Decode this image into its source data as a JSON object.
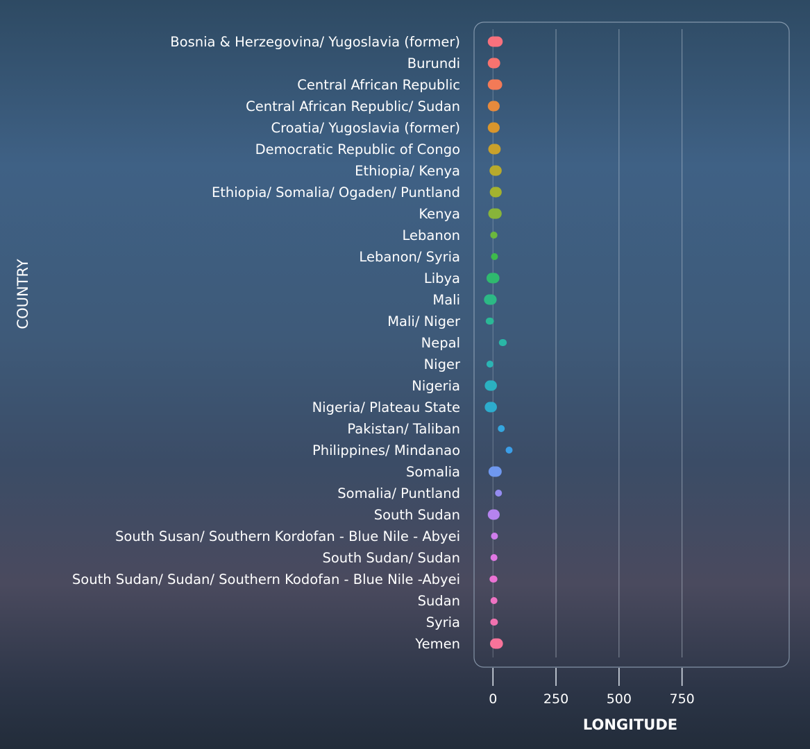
{
  "chart_data": {
    "type": "scatter",
    "orientation": "horizontal-categorical",
    "title": "",
    "xlabel": "LONGITUDE",
    "ylabel": "COUNTRY",
    "xlim": [
      -75,
      1175
    ],
    "xticks": [
      0,
      250,
      500,
      750
    ],
    "xtick_labels": [
      "0",
      "250",
      "500",
      "750"
    ],
    "grid": true,
    "legend": "none",
    "categories": [
      "Bosnia & Herzegovina/ Yugoslavia (former)",
      "Burundi",
      "Central African Republic",
      "Central African Republic/ Sudan",
      "Croatia/ Yugoslavia (former)",
      "Democratic Republic of Congo",
      "Ethiopia/ Kenya",
      "Ethiopia/ Somalia/ Ogaden/ Puntland",
      "Kenya",
      "Lebanon",
      "Lebanon/ Syria",
      "Libya",
      "Mali",
      "Mali/ Niger",
      "Nepal",
      "Niger",
      "Nigeria",
      "Nigeria/ Plateau State",
      "Pakistan/ Taliban",
      "Philippines/ Mindanao",
      "Somalia",
      "Somalia/ Puntland",
      "South Sudan",
      "South Susan/ Southern Kordofan - Blue Nile - Abyei",
      "South Sudan/ Sudan",
      "South Sudan/ Sudan/ Southern Kodofan - Blue Nile -Abyei",
      "Sudan",
      "Syria",
      "Yemen"
    ],
    "points": [
      {
        "category": "Bosnia & Herzegovina/ Yugoslavia (former)",
        "x_min": 0,
        "x_max": 18,
        "color": "#f7717d"
      },
      {
        "category": "Burundi",
        "x_min": 0,
        "x_max": 8,
        "color": "#f7736f"
      },
      {
        "category": "Central African Republic",
        "x_min": 0,
        "x_max": 16,
        "color": "#f37a57"
      },
      {
        "category": "Central African Republic/ Sudan",
        "x_min": 0,
        "x_max": 6,
        "color": "#e68a3c"
      },
      {
        "category": "Croatia/ Yugoslavia (former)",
        "x_min": 0,
        "x_max": 6,
        "color": "#d9962c"
      },
      {
        "category": "Democratic Republic of Congo",
        "x_min": 2,
        "x_max": 10,
        "color": "#c9a12b"
      },
      {
        "category": "Ethiopia/ Kenya",
        "x_min": 7,
        "x_max": 14,
        "color": "#b8aa2c"
      },
      {
        "category": "Ethiopia/ Somalia/ Ogaden/ Puntland",
        "x_min": 8,
        "x_max": 14,
        "color": "#a4b22e"
      },
      {
        "category": "Kenya",
        "x_min": 2,
        "x_max": 14,
        "color": "#88b43a"
      },
      {
        "category": "Lebanon",
        "x_min": 3,
        "x_max": 4,
        "color": "#6bb73e"
      },
      {
        "category": "Lebanon/ Syria",
        "x_min": 6,
        "x_max": 6,
        "color": "#3dba4c"
      },
      {
        "category": "Libya",
        "x_min": -5,
        "x_max": 5,
        "color": "#2fba6e"
      },
      {
        "category": "Mali",
        "x_min": -15,
        "x_max": -6,
        "color": "#2cb985"
      },
      {
        "category": "Mali/ Niger",
        "x_min": -15,
        "x_max": -10,
        "color": "#2bb896"
      },
      {
        "category": "Nepal",
        "x_min": 37,
        "x_max": 41,
        "color": "#2ab6a6"
      },
      {
        "category": "Niger",
        "x_min": -12,
        "x_max": -12,
        "color": "#2bb4b4"
      },
      {
        "category": "Nigeria",
        "x_min": -12,
        "x_max": -5,
        "color": "#2bb1c1"
      },
      {
        "category": "Nigeria/ Plateau State",
        "x_min": -12,
        "x_max": -5,
        "color": "#2daccd"
      },
      {
        "category": "Pakistan/ Taliban",
        "x_min": 33,
        "x_max": 33,
        "color": "#35a6de"
      },
      {
        "category": "Philippines/ Mindanao",
        "x_min": 64,
        "x_max": 64,
        "color": "#3b9ee8"
      },
      {
        "category": "Somalia",
        "x_min": 3,
        "x_max": 14,
        "color": "#6f98ef"
      },
      {
        "category": "Somalia/ Puntland",
        "x_min": 22,
        "x_max": 22,
        "color": "#948cf0"
      },
      {
        "category": "South Sudan",
        "x_min": 0,
        "x_max": 6,
        "color": "#b583ef"
      },
      {
        "category": "South Susan/ Southern Kordofan - Blue Nile - Abyei",
        "x_min": 6,
        "x_max": 6,
        "color": "#cf7deb"
      },
      {
        "category": "South Sudan/ Sudan",
        "x_min": 4,
        "x_max": 4,
        "color": "#df77e2"
      },
      {
        "category": "South Sudan/ Sudan/ Southern Kodofan - Blue Nile -Abyei",
        "x_min": 0,
        "x_max": 4,
        "color": "#eb73d4"
      },
      {
        "category": "Sudan",
        "x_min": 4,
        "x_max": 4,
        "color": "#ef73c3"
      },
      {
        "category": "Syria",
        "x_min": 3,
        "x_max": 6,
        "color": "#f172af"
      },
      {
        "category": "Yemen",
        "x_min": 9,
        "x_max": 19,
        "color": "#f7739a"
      }
    ]
  }
}
